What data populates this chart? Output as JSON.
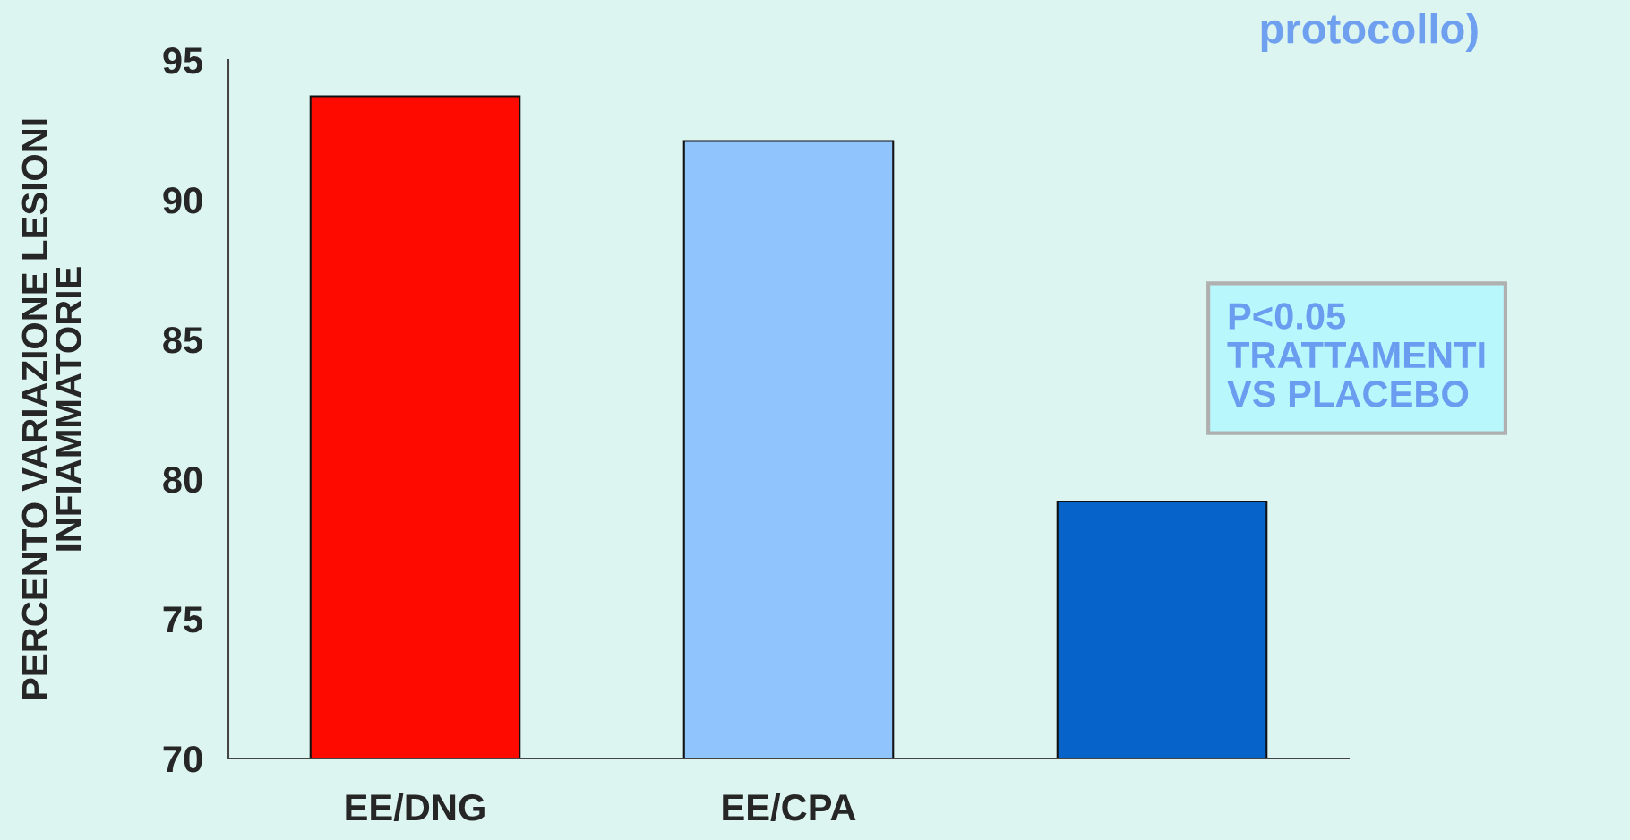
{
  "chart_data": {
    "type": "bar",
    "title": "protocollo)",
    "ylabel": "PERCENTO VARIAZIONE LESIONI\nINFIAMMATORIE",
    "categories": [
      "EE/DNG",
      "EE/CPA",
      null
    ],
    "values": [
      93.7,
      92.1,
      79.2
    ],
    "colors": [
      "#ff0a00",
      "#8fc4fc",
      "#0563c9"
    ],
    "ylim": [
      70,
      95
    ],
    "yticks": [
      70,
      75,
      80,
      85,
      90,
      95
    ],
    "grid": false,
    "annotations": [
      "P<0.05\nTRATTAMENTI\nVS PLACEBO"
    ]
  }
}
